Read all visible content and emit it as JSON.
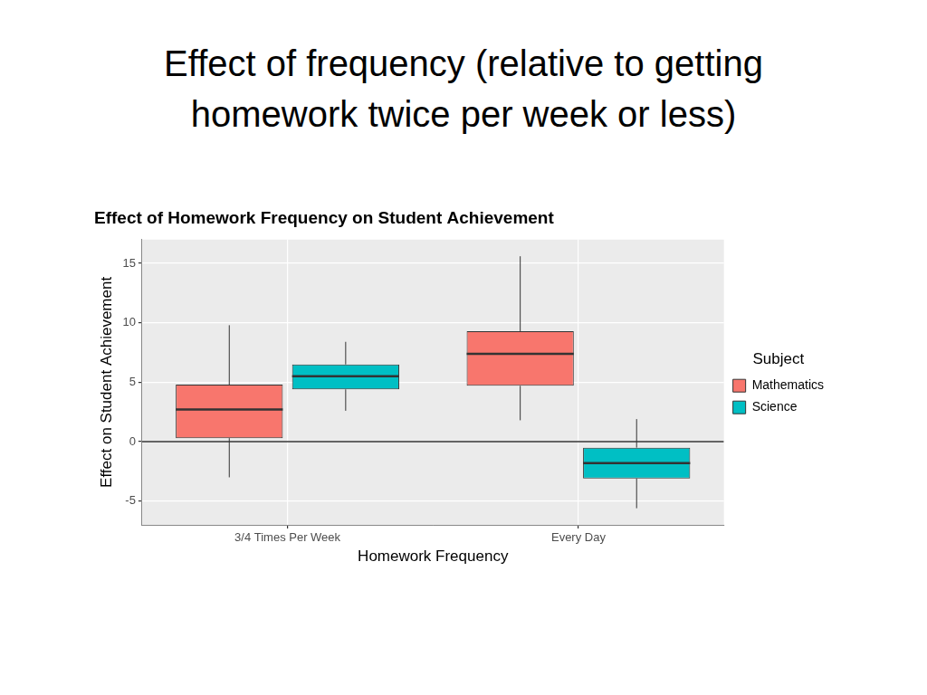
{
  "slide": {
    "title": "Effect of frequency (relative to getting homework twice per week or less)"
  },
  "chart_data": {
    "type": "boxplot",
    "title": "Effect of Homework Frequency on Student Achievement",
    "x_label": "Homework Frequency",
    "y_label": "Effect on Student Achievement",
    "categories": [
      "3/4 Times Per Week",
      "Every Day"
    ],
    "series": [
      {
        "name": "Mathematics",
        "color": "#F8766D",
        "values": [
          {
            "min": -3,
            "q1": 0.3,
            "median": 2.7,
            "q3": 4.8,
            "max": 9.8
          },
          {
            "min": 1.8,
            "q1": 4.7,
            "median": 7.4,
            "q3": 9.3,
            "max": 15.6
          }
        ]
      },
      {
        "name": "Science",
        "color": "#00BFC4",
        "values": [
          {
            "min": 2.6,
            "q1": 4.4,
            "median": 5.5,
            "q3": 6.5,
            "max": 8.4
          },
          {
            "min": -5.6,
            "q1": -3.1,
            "median": -1.8,
            "q3": -0.5,
            "max": 1.9
          }
        ]
      }
    ],
    "hline": 0,
    "ylim": [
      -7,
      17
    ],
    "yticks": [
      -5,
      0,
      5,
      10,
      15
    ],
    "grid": true,
    "legend": "right",
    "legend_title": "Subject"
  }
}
